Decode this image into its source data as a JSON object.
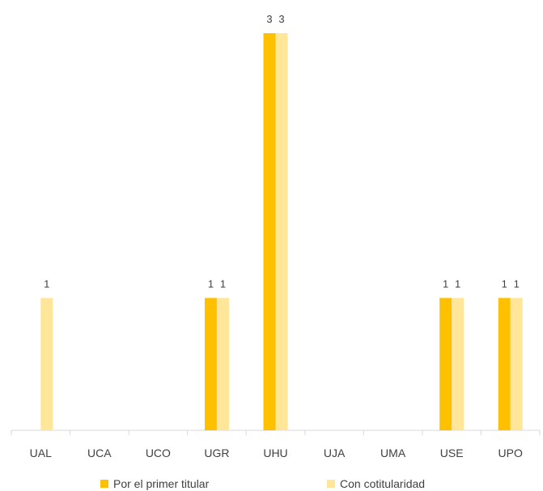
{
  "chart_data": {
    "type": "bar",
    "categories": [
      "UAL",
      "UCA",
      "UCO",
      "UGR",
      "UHU",
      "UJA",
      "UMA",
      "USE",
      "UPO"
    ],
    "series": [
      {
        "name": "Por el primer titular",
        "color": "#FFC000",
        "values": [
          0,
          0,
          0,
          1,
          3,
          0,
          0,
          1,
          1
        ],
        "labels": [
          "",
          "",
          "",
          "1",
          "3",
          "",
          "",
          "1",
          "1"
        ]
      },
      {
        "name": "Con cotitularidad",
        "color": "#FFE699",
        "values": [
          1,
          0,
          0,
          1,
          3,
          0,
          0,
          1,
          1
        ],
        "labels": [
          "1",
          "",
          "",
          "1",
          "3",
          "",
          "",
          "1",
          "1"
        ]
      }
    ],
    "ylim": [
      0,
      3
    ],
    "grid": false,
    "legend_position": "bottom"
  }
}
